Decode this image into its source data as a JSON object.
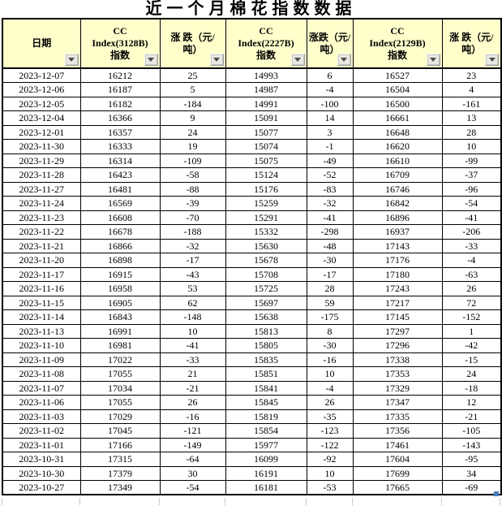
{
  "title": "近一个月棉花指数数据",
  "colors": {
    "positive_change": "#FF0000",
    "negative_change": "#0070C0",
    "header_bg": "#FFFFCC"
  },
  "filter_icon": "chevron-down",
  "table": {
    "columns": [
      {
        "label": "日期"
      },
      {
        "label": "CC\nIndex(3128B)\n指数"
      },
      {
        "label": "涨 跌（元/\n吨）"
      },
      {
        "label": "CC\nIndex(2227B)\n指数"
      },
      {
        "label": "涨跌（元/\n吨）"
      },
      {
        "label": "CC\nIndex(2129B)\n指数"
      },
      {
        "label": "涨 跌（元/\n吨）"
      }
    ],
    "rows": [
      [
        "2023-12-07",
        "16212",
        "25",
        "14993",
        "6",
        "16527",
        "23"
      ],
      [
        "2023-12-06",
        "16187",
        "5",
        "14987",
        "-4",
        "16504",
        "4"
      ],
      [
        "2023-12-05",
        "16182",
        "-184",
        "14991",
        "-100",
        "16500",
        "-161"
      ],
      [
        "2023-12-04",
        "16366",
        "9",
        "15091",
        "14",
        "16661",
        "13"
      ],
      [
        "2023-12-01",
        "16357",
        "24",
        "15077",
        "3",
        "16648",
        "28"
      ],
      [
        "2023-11-30",
        "16333",
        "19",
        "15074",
        "-1",
        "16620",
        "10"
      ],
      [
        "2023-11-29",
        "16314",
        "-109",
        "15075",
        "-49",
        "16610",
        "-99"
      ],
      [
        "2023-11-28",
        "16423",
        "-58",
        "15124",
        "-52",
        "16709",
        "-37"
      ],
      [
        "2023-11-27",
        "16481",
        "-88",
        "15176",
        "-83",
        "16746",
        "-96"
      ],
      [
        "2023-11-24",
        "16569",
        "-39",
        "15259",
        "-32",
        "16842",
        "-54"
      ],
      [
        "2023-11-23",
        "16608",
        "-70",
        "15291",
        "-41",
        "16896",
        "-41"
      ],
      [
        "2023-11-22",
        "16678",
        "-188",
        "15332",
        "-298",
        "16937",
        "-206"
      ],
      [
        "2023-11-21",
        "16866",
        "-32",
        "15630",
        "-48",
        "17143",
        "-33"
      ],
      [
        "2023-11-20",
        "16898",
        "-17",
        "15678",
        "-30",
        "17176",
        "-4"
      ],
      [
        "2023-11-17",
        "16915",
        "-43",
        "15708",
        "-17",
        "17180",
        "-63"
      ],
      [
        "2023-11-16",
        "16958",
        "53",
        "15725",
        "28",
        "17243",
        "26"
      ],
      [
        "2023-11-15",
        "16905",
        "62",
        "15697",
        "59",
        "17217",
        "72"
      ],
      [
        "2023-11-14",
        "16843",
        "-148",
        "15638",
        "-175",
        "17145",
        "-152"
      ],
      [
        "2023-11-13",
        "16991",
        "10",
        "15813",
        "8",
        "17297",
        "1"
      ],
      [
        "2023-11-10",
        "16981",
        "-41",
        "15805",
        "-30",
        "17296",
        "-42"
      ],
      [
        "2023-11-09",
        "17022",
        "-33",
        "15835",
        "-16",
        "17338",
        "-15"
      ],
      [
        "2023-11-08",
        "17055",
        "21",
        "15851",
        "10",
        "17353",
        "24"
      ],
      [
        "2023-11-07",
        "17034",
        "-21",
        "15841",
        "-4",
        "17329",
        "-18"
      ],
      [
        "2023-11-06",
        "17055",
        "26",
        "15845",
        "26",
        "17347",
        "12"
      ],
      [
        "2023-11-03",
        "17029",
        "-16",
        "15819",
        "-35",
        "17335",
        "-21"
      ],
      [
        "2023-11-02",
        "17045",
        "-121",
        "15854",
        "-123",
        "17356",
        "-105"
      ],
      [
        "2023-11-01",
        "17166",
        "-149",
        "15977",
        "-122",
        "17461",
        "-143"
      ],
      [
        "2023-10-31",
        "17315",
        "-64",
        "16099",
        "-92",
        "17604",
        "-95"
      ],
      [
        "2023-10-30",
        "17379",
        "30",
        "16191",
        "10",
        "17699",
        "34"
      ],
      [
        "2023-10-27",
        "17349",
        "-54",
        "16181",
        "-53",
        "17665",
        "-69"
      ]
    ]
  }
}
